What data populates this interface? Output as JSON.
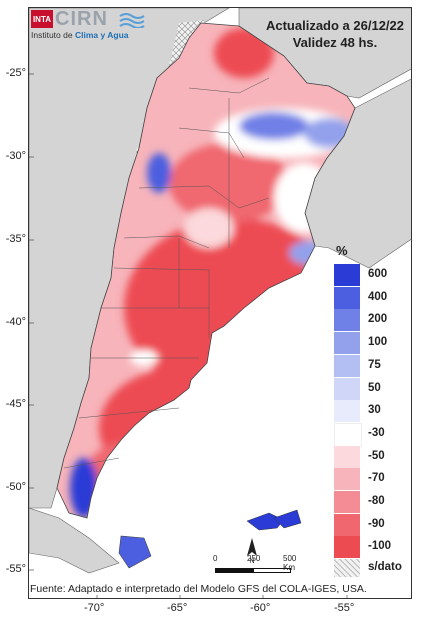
{
  "header": {
    "logo_badge": "INTA",
    "logo_name": "CIRN",
    "institute_prefix": "Instituto de ",
    "institute_highlight": "Clima y Agua",
    "updated": "Actualizado a 26/12/22",
    "validity": "Validez 48 hs."
  },
  "axes": {
    "y_ticks": [
      "-25°",
      "-30°",
      "-35°",
      "-40°",
      "-45°",
      "-50°",
      "-55°"
    ],
    "x_ticks": [
      "-70°",
      "-65°",
      "-60°",
      "-55°"
    ]
  },
  "legend": {
    "unit": "%",
    "items": [
      {
        "label": "600",
        "color": "#2a3bd6"
      },
      {
        "label": "400",
        "color": "#4c5fe0"
      },
      {
        "label": "200",
        "color": "#6f80e6"
      },
      {
        "label": "100",
        "color": "#93a1ec"
      },
      {
        "label": "75",
        "color": "#b3bef2"
      },
      {
        "label": "50",
        "color": "#cfd6f7"
      },
      {
        "label": "30",
        "color": "#e8ebfb"
      },
      {
        "label": "-30",
        "color": "#ffffff"
      },
      {
        "label": "-50",
        "color": "#fbd9dc"
      },
      {
        "label": "-70",
        "color": "#f7b4ba"
      },
      {
        "label": "-80",
        "color": "#f48c95"
      },
      {
        "label": "-90",
        "color": "#f06770"
      },
      {
        "label": "-100",
        "color": "#ed4b52"
      }
    ],
    "nodata_label": "s/dato"
  },
  "scale": {
    "t0": "0",
    "t1": "250",
    "t2": "500 Km"
  },
  "footer": {
    "source": "Fuente: Adaptado e interpretado del Modelo GFS del COLA-IGES, USA."
  }
}
